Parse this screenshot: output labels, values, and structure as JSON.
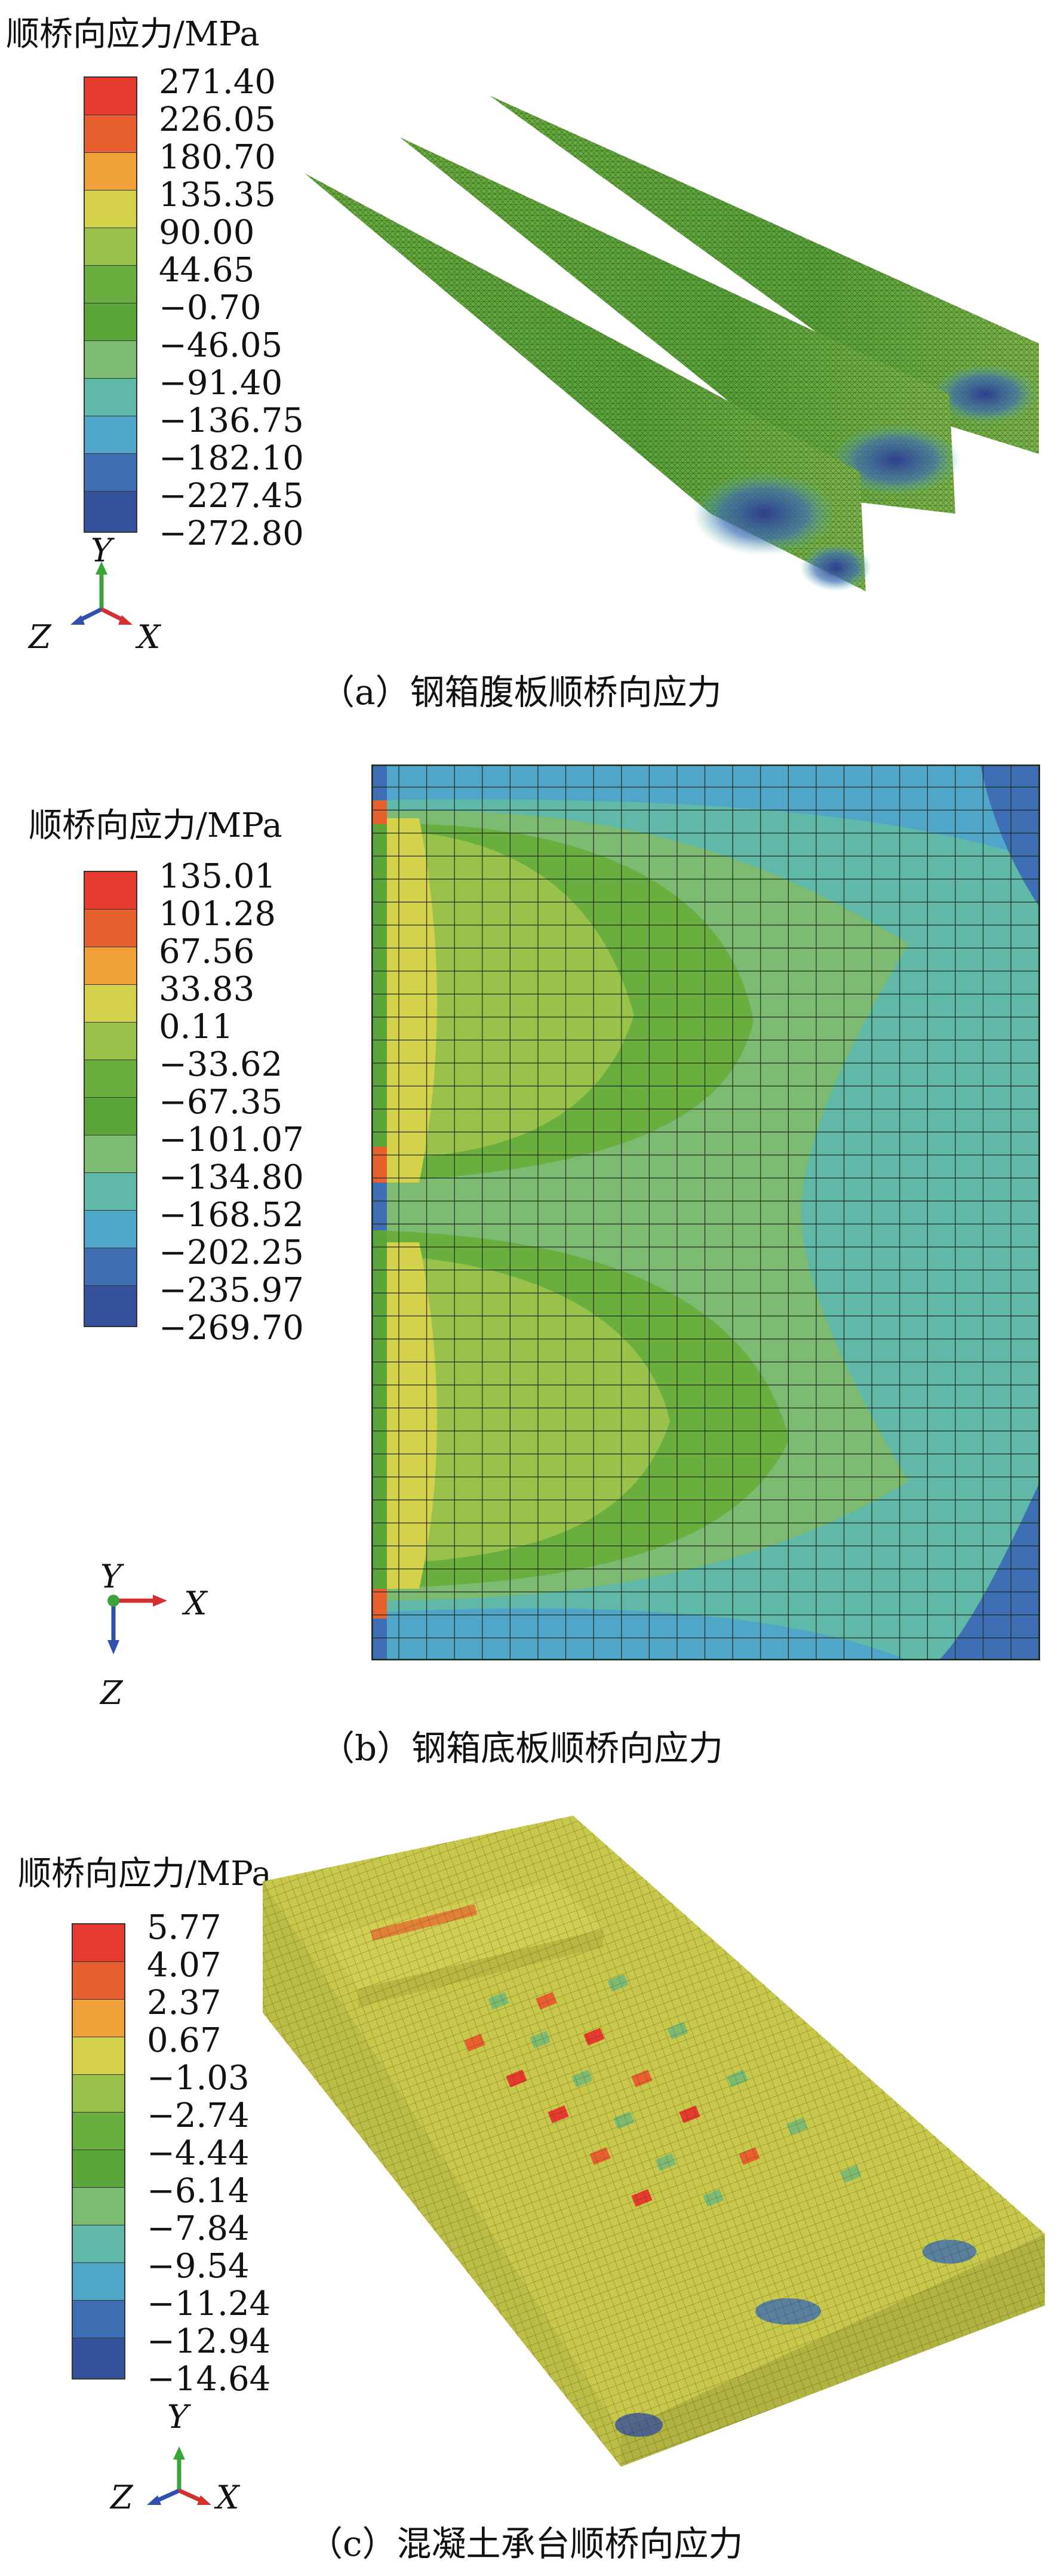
{
  "panels": [
    {
      "legend_title": "顺桥向应力/MPa",
      "legend_values": [
        "271.40",
        "226.05",
        "180.70",
        "135.35",
        "90.00",
        "44.65",
        "−0.70",
        "−46.05",
        "−91.40",
        "−136.75",
        "−182.10",
        "−227.45",
        "−272.80"
      ],
      "axes": {
        "up": "Y",
        "left": "Z",
        "right": "X"
      },
      "caption": "（a）钢箱腹板顺桥向应力"
    },
    {
      "legend_title": "顺桥向应力/MPa",
      "legend_values": [
        "135.01",
        "101.28",
        "67.56",
        "33.83",
        "0.11",
        "−33.62",
        "−67.35",
        "−101.07",
        "−134.80",
        "−168.52",
        "−202.25",
        "−235.97",
        "−269.70"
      ],
      "axes": {
        "up": "Y",
        "right": "X",
        "down": "Z"
      },
      "caption": "（b）钢箱底板顺桥向应力"
    },
    {
      "legend_title": "顺桥向应力/MPa",
      "legend_values": [
        "5.77",
        "4.07",
        "2.37",
        "0.67",
        "−1.03",
        "−2.74",
        "−4.44",
        "−6.14",
        "−7.84",
        "−9.54",
        "−11.24",
        "−12.94",
        "−14.64"
      ],
      "axes": {
        "up": "Y",
        "left": "Z",
        "right": "X"
      },
      "caption": "（c）混凝土承台顺桥向应力"
    }
  ],
  "colors": {
    "scale": [
      "#e63a2e",
      "#e8602e",
      "#f0a13a",
      "#d4d24a",
      "#98c24a",
      "#6aae3f",
      "#5aa63a",
      "#7dbb72",
      "#5fb8a8",
      "#4fa6c8",
      "#3e6eb4",
      "#35509c"
    ]
  }
}
